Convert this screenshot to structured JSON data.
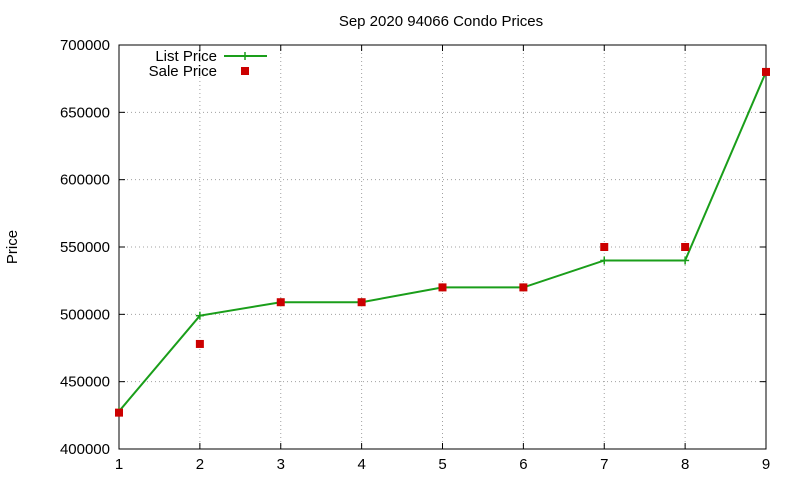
{
  "chart_data": {
    "type": "line",
    "title": "Sep 2020 94066 Condo Prices",
    "xlabel": "",
    "ylabel": "Price",
    "xlim": [
      1,
      9
    ],
    "ylim": [
      400000,
      700000
    ],
    "x_ticks": [
      "1",
      "2",
      "3",
      "4",
      "5",
      "6",
      "7",
      "8",
      "9"
    ],
    "y_ticks": [
      "400000",
      "450000",
      "500000",
      "550000",
      "600000",
      "650000",
      "700000"
    ],
    "grid": true,
    "legend_position": "top-left",
    "series": [
      {
        "name": "List Price",
        "style": "line-with-plus-markers",
        "color": "#1a9e1a",
        "x": [
          1,
          2,
          3,
          4,
          5,
          6,
          7,
          8,
          9
        ],
        "values": [
          428000,
          499000,
          509000,
          509000,
          520000,
          520000,
          540000,
          540000,
          680000
        ]
      },
      {
        "name": "Sale Price",
        "style": "square-markers",
        "color": "#cc0000",
        "x": [
          1,
          2,
          3,
          4,
          5,
          6,
          7,
          8,
          9
        ],
        "values": [
          427000,
          478000,
          509000,
          509000,
          520000,
          520000,
          550000,
          550000,
          680000
        ]
      }
    ]
  }
}
